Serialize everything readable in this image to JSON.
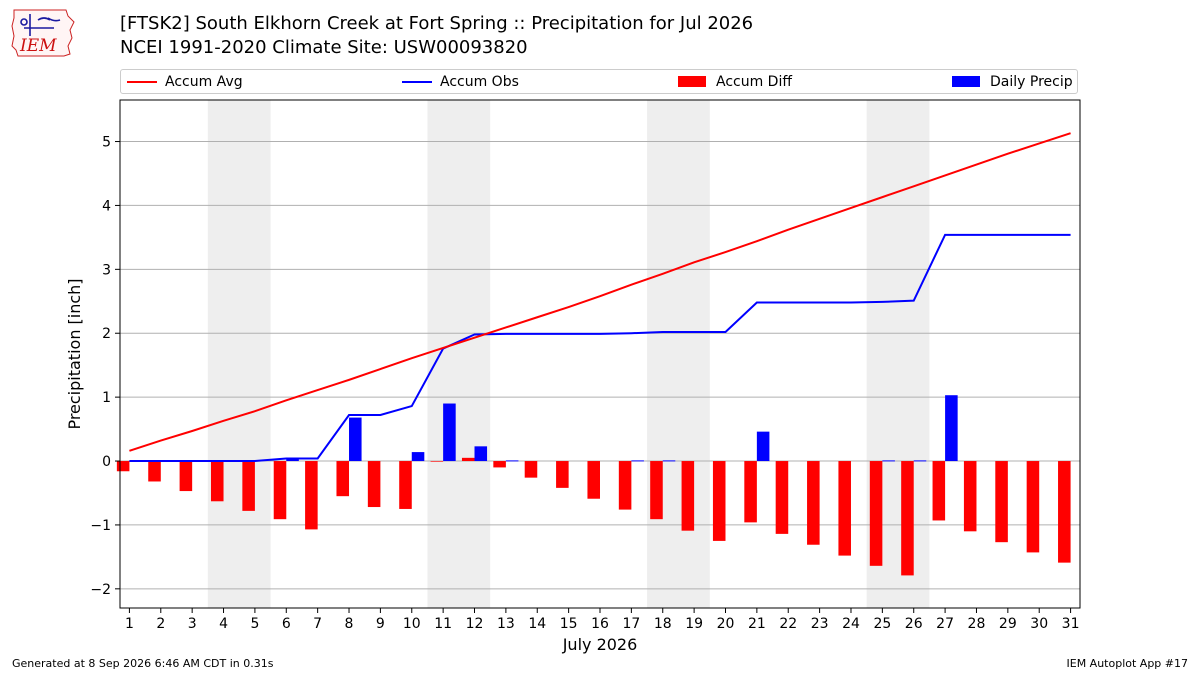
{
  "header": {
    "title_line1": "[FTSK2] South Elkhorn Creek at Fort Spring :: Precipitation for Jul 2026",
    "title_line2": "NCEI 1991-2020 Climate Site: USW00093820"
  },
  "logo": {
    "text": "IEM"
  },
  "footer": {
    "generated": "Generated at 8 Sep 2026 6:46 AM CDT in 0.31s",
    "app": "IEM Autoplot App #17"
  },
  "colors": {
    "avg": "#ff0000",
    "obs": "#0000ff",
    "diff": "#ff0000",
    "daily": "#0000ff",
    "weekend": "#eeeeee",
    "grid": "#b0b0b0"
  },
  "chart_data": {
    "type": "bar",
    "xlabel": "July 2026",
    "ylabel": "Precipitation [inch]",
    "ylim": [
      -2.3,
      5.65
    ],
    "yticks": [
      -2,
      -1,
      0,
      1,
      2,
      3,
      4,
      5
    ],
    "ytick_labels": [
      "−2",
      "−1",
      "0",
      "1",
      "2",
      "3",
      "4",
      "5"
    ],
    "grid": "horizontal",
    "legend_placement": "top",
    "categories": [
      "1",
      "2",
      "3",
      "4",
      "5",
      "6",
      "7",
      "8",
      "9",
      "10",
      "11",
      "12",
      "13",
      "14",
      "15",
      "16",
      "17",
      "18",
      "19",
      "20",
      "21",
      "22",
      "23",
      "24",
      "25",
      "26",
      "27",
      "28",
      "29",
      "30",
      "31"
    ],
    "shaded_day_ranges": [
      [
        4,
        5
      ],
      [
        11,
        12
      ],
      [
        18,
        19
      ],
      [
        25,
        26
      ]
    ],
    "series": [
      {
        "name": "Accum Avg",
        "type": "line",
        "values": [
          0.16,
          0.32,
          0.47,
          0.63,
          0.78,
          0.95,
          1.11,
          1.27,
          1.44,
          1.61,
          1.77,
          1.93,
          2.09,
          2.25,
          2.41,
          2.58,
          2.76,
          2.93,
          3.11,
          3.27,
          3.44,
          3.62,
          3.79,
          3.96,
          4.13,
          4.3,
          4.47,
          4.64,
          4.81,
          4.97,
          5.13
        ]
      },
      {
        "name": "Accum Obs",
        "type": "line",
        "values": [
          0.0,
          0.0,
          0.0,
          0.0,
          0.0,
          0.04,
          0.04,
          0.72,
          0.72,
          0.86,
          1.76,
          1.98,
          1.99,
          1.99,
          1.99,
          1.99,
          2.0,
          2.02,
          2.02,
          2.02,
          2.48,
          2.48,
          2.48,
          2.48,
          2.49,
          2.51,
          3.54,
          3.54,
          3.54,
          3.54,
          3.54
        ]
      },
      {
        "name": "Accum Diff",
        "type": "bar",
        "values": [
          -0.16,
          -0.32,
          -0.47,
          -0.63,
          -0.78,
          -0.91,
          -1.07,
          -0.55,
          -0.72,
          -0.75,
          -0.01,
          0.05,
          -0.1,
          -0.26,
          -0.42,
          -0.59,
          -0.76,
          -0.91,
          -1.09,
          -1.25,
          -0.96,
          -1.14,
          -1.31,
          -1.48,
          -1.64,
          -1.79,
          -0.93,
          -1.1,
          -1.27,
          -1.43,
          -1.59
        ]
      },
      {
        "name": "Daily Precip",
        "type": "bar",
        "values": [
          0.0,
          0.0,
          0.0,
          0.0,
          0.0,
          0.04,
          0.0,
          0.68,
          0.0,
          0.14,
          0.9,
          0.23,
          0.01,
          0.0,
          0.0,
          0.0,
          0.01,
          0.01,
          0.0,
          0.0,
          0.46,
          0.0,
          0.0,
          0.0,
          0.01,
          0.01,
          1.03,
          0.0,
          0.0,
          0.0,
          0.0
        ]
      }
    ]
  }
}
